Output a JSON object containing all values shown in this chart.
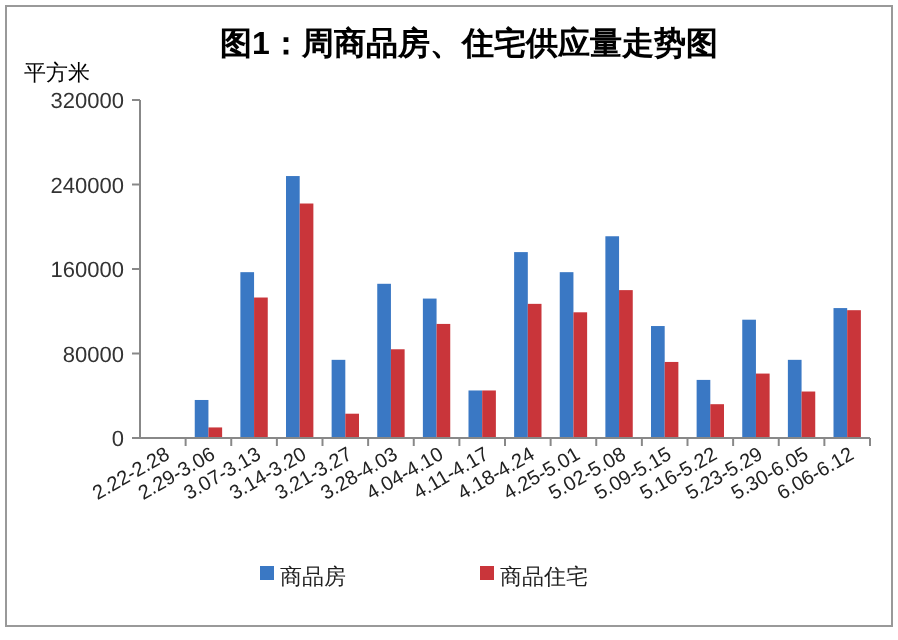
{
  "chart_data": {
    "type": "bar",
    "title": "图1：周商品房、住宅供应量走势图",
    "ylabel": "平方米",
    "categories": [
      "2.22-2.28",
      "2.29-3.06",
      "3.07-3.13",
      "3.14-3.20",
      "3.21-3.27",
      "3.28-4.03",
      "4.04-4.10",
      "4.11-4.17",
      "4.18-4.24",
      "4.25-5.01",
      "5.02-5.08",
      "5.09-5.15",
      "5.16-5.22",
      "5.23-5.29",
      "5.30-6.05",
      "6.06-6.12"
    ],
    "series": [
      {
        "name": "商品房",
        "color": "#3a78c4",
        "values": [
          null,
          36000,
          157000,
          248000,
          74000,
          146000,
          132000,
          45000,
          176000,
          157000,
          191000,
          106000,
          55000,
          112000,
          74000,
          123000
        ]
      },
      {
        "name": "商品住宅",
        "color": "#c9353a",
        "values": [
          null,
          10000,
          133000,
          222000,
          23000,
          84000,
          108000,
          45000,
          127000,
          119000,
          140000,
          72000,
          32000,
          61000,
          44000,
          121000
        ]
      }
    ],
    "ylim": [
      0,
      320000
    ],
    "yticks": [
      0,
      80000,
      160000,
      240000,
      320000
    ],
    "grid": false,
    "legend": "bottom"
  }
}
